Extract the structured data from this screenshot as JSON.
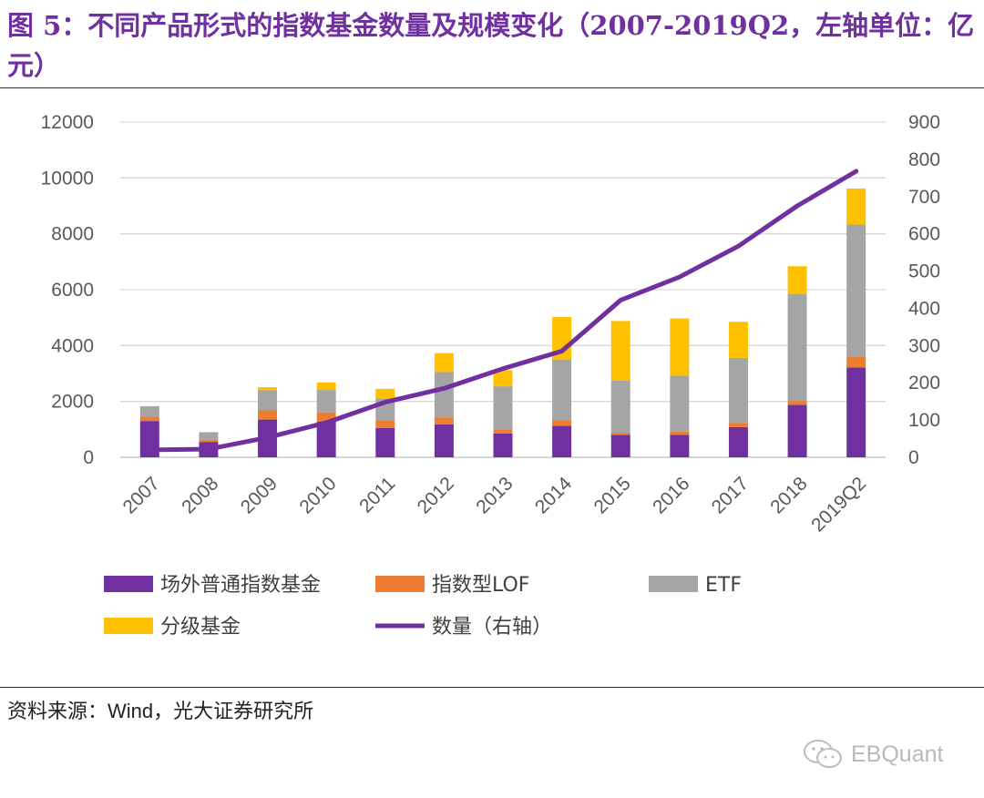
{
  "title": "图 5：不同产品形式的指数基金数量及规模变化（2007-2019Q2，左轴单位：亿元）",
  "source": {
    "prefix": "资料来源：",
    "text": "Wind，光大证券研究所"
  },
  "watermark": "EBQuant",
  "chart_data": {
    "type": "bar",
    "stacked": true,
    "title": "不同产品形式的指数基金数量及规模变化（2007-2019Q2，左轴单位：亿元）",
    "categories": [
      "2007",
      "2008",
      "2009",
      "2010",
      "2011",
      "2012",
      "2013",
      "2014",
      "2015",
      "2016",
      "2017",
      "2018",
      "2019Q2"
    ],
    "left_axis": {
      "min": 0,
      "max": 12000,
      "ticks": [
        0,
        2000,
        4000,
        6000,
        8000,
        10000,
        12000
      ],
      "unit": "亿元"
    },
    "right_axis": {
      "min": 0,
      "max": 900,
      "ticks": [
        0,
        100,
        200,
        300,
        400,
        500,
        600,
        700,
        800,
        900
      ]
    },
    "grid": true,
    "legend_position": "bottom",
    "series": [
      {
        "name": "场外普通指数基金",
        "color": "#7030a0",
        "axis": "left",
        "values": [
          1300,
          550,
          1350,
          1280,
          1050,
          1180,
          850,
          1130,
          800,
          800,
          1080,
          1880,
          3220
        ]
      },
      {
        "name": "指数型LOF",
        "color": "#ed7d31",
        "axis": "left",
        "values": [
          150,
          80,
          330,
          330,
          280,
          250,
          150,
          190,
          80,
          120,
          150,
          140,
          380
        ]
      },
      {
        "name": "ETF",
        "color": "#a5a5a5",
        "axis": "left",
        "values": [
          380,
          270,
          720,
          800,
          770,
          1620,
          1540,
          2180,
          1870,
          2000,
          2330,
          3830,
          4730
        ]
      },
      {
        "name": "分级基金",
        "color": "#ffc000",
        "axis": "left",
        "values": [
          0,
          0,
          110,
          270,
          350,
          680,
          580,
          1520,
          2130,
          2050,
          1290,
          990,
          1290
        ]
      },
      {
        "name": "数量（右轴）",
        "color": "#7030a0",
        "axis": "right",
        "type": "line",
        "values": [
          20,
          22,
          53,
          93,
          148,
          185,
          238,
          285,
          422,
          484,
          567,
          675,
          768
        ]
      }
    ]
  }
}
